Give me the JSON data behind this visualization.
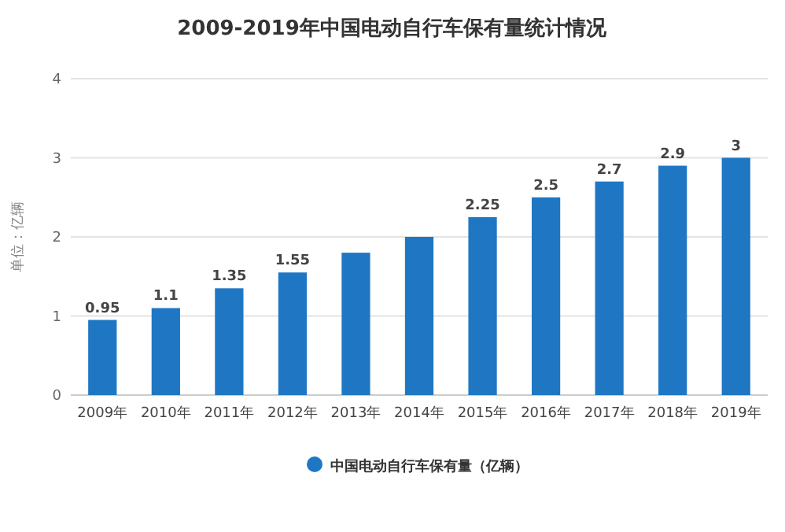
{
  "chart_data": {
    "type": "bar",
    "title": "2009-2019年中国电动自行车保有量统计情况",
    "ylabel": "单位：亿辆",
    "categories": [
      "2009年",
      "2010年",
      "2011年",
      "2012年",
      "2013年",
      "2014年",
      "2015年",
      "2016年",
      "2017年",
      "2018年",
      "2019年"
    ],
    "series": [
      {
        "name": "中国电动自行车保有量（亿辆）",
        "color": "#1f77c4",
        "values": [
          0.95,
          1.1,
          1.35,
          1.55,
          1.8,
          2.0,
          2.25,
          2.5,
          2.7,
          2.9,
          3
        ],
        "value_labels": [
          "0.95",
          "1.1",
          "1.35",
          "1.55",
          null,
          null,
          "2.25",
          "2.5",
          "2.7",
          "2.9",
          "3"
        ]
      }
    ],
    "ylim": [
      0,
      4
    ],
    "yticks": [
      0,
      1,
      2,
      3,
      4
    ],
    "grid": "y",
    "legend": "bottom"
  }
}
